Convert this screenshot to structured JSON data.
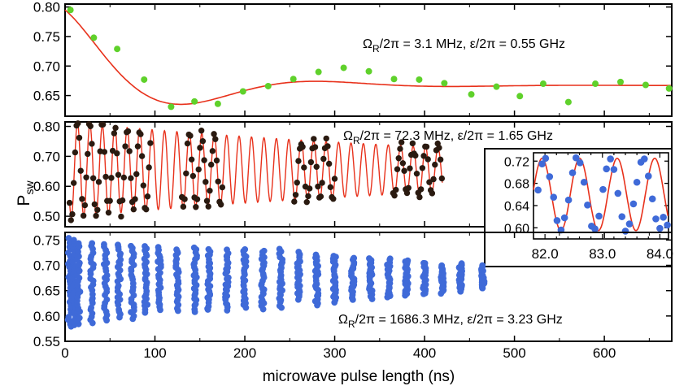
{
  "figure": {
    "ylabel_main": "P",
    "ylabel_sub": "sw",
    "xlabel": "microwave pulse length (ns)"
  },
  "chart_data": [
    {
      "type": "scatter",
      "panel": "top",
      "title": "",
      "xlim": [
        0,
        675
      ],
      "ylim": [
        0.615,
        0.805
      ],
      "yticks": [
        0.65,
        0.7,
        0.75,
        0.8
      ],
      "ytick_labels": [
        "0.65",
        "0.70",
        "0.75",
        "0.80"
      ],
      "annotation": {
        "prefix": "Ω",
        "sub": "R",
        "text": "/2π = 3.1 MHz, ε/2π = 0.55 GHz"
      },
      "marker_color": "#5fd12b",
      "fit_color": "#e8311b",
      "fit": {
        "model": "damped_cosine",
        "offset": 0.667,
        "amplitude": 0.128,
        "freq_MHz": 3.1,
        "tau_ns": 100,
        "period_ns": 300
      },
      "series": [
        {
          "name": "data",
          "x": [
            6,
            32,
            58,
            88,
            118,
            144,
            170,
            198,
            226,
            254,
            282,
            310,
            338,
            366,
            394,
            422,
            452,
            480,
            506,
            532,
            560,
            590,
            618,
            646,
            672
          ],
          "y": [
            0.795,
            0.748,
            0.729,
            0.677,
            0.631,
            0.64,
            0.636,
            0.657,
            0.666,
            0.678,
            0.69,
            0.697,
            0.691,
            0.678,
            0.677,
            0.671,
            0.652,
            0.665,
            0.649,
            0.67,
            0.639,
            0.67,
            0.673,
            0.668,
            0.662
          ]
        }
      ]
    },
    {
      "type": "scatter",
      "panel": "middle",
      "title": "",
      "xlim": [
        0,
        675
      ],
      "ylim": [
        0.465,
        0.815
      ],
      "yticks": [
        0.5,
        0.6,
        0.7,
        0.8
      ],
      "ytick_labels": [
        "0.50",
        "0.60",
        "0.70",
        "0.80"
      ],
      "annotation": {
        "prefix": "Ω",
        "sub": "R",
        "text": "/2π = 72.3 MHz, ε/2π = 1.65 GHz"
      },
      "marker_color": "#2a1a10",
      "fit_color": "#e8311b",
      "fit": {
        "model": "damped_cosine",
        "offset": 0.655,
        "amplitude": 0.16,
        "freq_MHz": 72.3,
        "tau_ns": 550,
        "x_range": [
          5,
          420
        ]
      },
      "data_windows_ns": [
        [
          5,
          95
        ],
        [
          130,
          175
        ],
        [
          255,
          300
        ],
        [
          365,
          420
        ]
      ],
      "inset": {
        "type": "scatter",
        "xlim": [
          81.8,
          84.15
        ],
        "ylim": [
          0.58,
          0.735
        ],
        "xticks": [
          82.0,
          83.0,
          84.0
        ],
        "xtick_labels": [
          "82.0",
          "83.0",
          "84.0"
        ],
        "yticks": [
          0.6,
          0.64,
          0.68,
          0.72
        ],
        "ytick_labels": [
          "0.60",
          "0.64",
          "0.68",
          "0.72"
        ],
        "marker_color": "#3f6ad8",
        "fit_color": "#e8311b",
        "fit": {
          "model": "cosine",
          "offset": 0.66,
          "amplitude": 0.065,
          "freq_GHz": 1.53
        },
        "x": [
          81.88,
          81.95,
          82.01,
          82.08,
          82.15,
          82.21,
          82.28,
          82.34,
          82.41,
          82.48,
          82.54,
          82.61,
          82.68,
          82.74,
          82.81,
          82.87,
          82.94,
          83.01,
          83.07,
          83.14,
          83.2,
          83.27,
          83.34,
          83.4,
          83.47,
          83.54,
          83.6,
          83.67,
          83.73,
          83.8,
          83.87,
          83.93,
          84.0,
          84.06,
          84.13
        ],
        "y": [
          0.668,
          0.715,
          0.725,
          0.692,
          0.655,
          0.613,
          0.596,
          0.618,
          0.65,
          0.699,
          0.726,
          0.717,
          0.682,
          0.641,
          0.603,
          0.598,
          0.621,
          0.669,
          0.706,
          0.724,
          0.705,
          0.662,
          0.62,
          0.594,
          0.607,
          0.643,
          0.682,
          0.718,
          0.724,
          0.693,
          0.652,
          0.616,
          0.599,
          0.619,
          0.605
        ]
      }
    },
    {
      "type": "scatter",
      "panel": "bottom",
      "title": "",
      "xlim": [
        0,
        675
      ],
      "ylim": [
        0.55,
        0.765
      ],
      "yticks": [
        0.55,
        0.6,
        0.65,
        0.7,
        0.75
      ],
      "ytick_labels": [
        "0.55",
        "0.60",
        "0.65",
        "0.70",
        "0.75"
      ],
      "xticks": [
        0,
        100,
        200,
        300,
        400,
        500,
        600
      ],
      "xtick_labels": [
        "0",
        "100",
        "200",
        "300",
        "400",
        "500",
        "600"
      ],
      "annotation": {
        "prefix": "Ω",
        "sub": "R",
        "text": "/2π = 1686.3 MHz, ε/2π = 3.23 GHz"
      },
      "marker_color": "#3f6ad8",
      "columns": {
        "x_ns": [
          5,
          10,
          15,
          30,
          45,
          60,
          75,
          90,
          105,
          125,
          145,
          160,
          180,
          200,
          220,
          240,
          260,
          280,
          300,
          320,
          340,
          360,
          380,
          400,
          420,
          440,
          465
        ],
        "ymax": [
          0.752,
          0.748,
          0.745,
          0.745,
          0.743,
          0.742,
          0.74,
          0.738,
          0.735,
          0.733,
          0.735,
          0.732,
          0.729,
          0.731,
          0.73,
          0.731,
          0.725,
          0.722,
          0.72,
          0.716,
          0.715,
          0.712,
          0.71,
          0.706,
          0.7,
          0.703,
          0.698
        ],
        "ymin": [
          0.578,
          0.582,
          0.585,
          0.586,
          0.591,
          0.597,
          0.594,
          0.608,
          0.612,
          0.612,
          0.61,
          0.611,
          0.612,
          0.616,
          0.614,
          0.617,
          0.634,
          0.622,
          0.628,
          0.63,
          0.635,
          0.636,
          0.64,
          0.643,
          0.646,
          0.648,
          0.654
        ]
      }
    }
  ]
}
